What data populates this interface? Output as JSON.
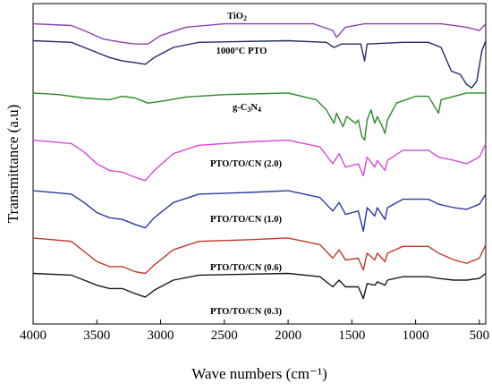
{
  "chart_data": {
    "type": "line",
    "xlabel": "Wave numbers (cm⁻¹)",
    "ylabel": "Transmittance (a.u)",
    "xlim": [
      4000,
      450
    ],
    "x_reversed": true,
    "xticks": [
      4000,
      3500,
      3000,
      2500,
      2000,
      1500,
      1000,
      500
    ],
    "yticks_shown": false,
    "grid": false,
    "legend": "none",
    "series": [
      {
        "name": "TiO₂",
        "label_html": "TiO<tspan font-size='8px' dy='2'>2</tspan>",
        "color": "#8e3fb0",
        "offset": 7.4,
        "points": [
          [
            4000,
            0
          ],
          [
            3700,
            -0.05
          ],
          [
            3600,
            -0.2
          ],
          [
            3450,
            -0.45
          ],
          [
            3300,
            -0.55
          ],
          [
            3200,
            -0.6
          ],
          [
            3100,
            -0.6
          ],
          [
            3000,
            -0.35
          ],
          [
            2800,
            -0.1
          ],
          [
            2500,
            0
          ],
          [
            1800,
            0
          ],
          [
            1650,
            -0.2
          ],
          [
            1620,
            -0.4
          ],
          [
            1550,
            -0.1
          ],
          [
            1400,
            0
          ],
          [
            800,
            0
          ],
          [
            600,
            -0.1
          ],
          [
            500,
            -0.2
          ],
          [
            450,
            0
          ]
        ]
      },
      {
        "name": "1000°C PTO",
        "label_html": "1000°C PTO",
        "color": "#252a6b",
        "offset": 6.9,
        "points": [
          [
            4000,
            0
          ],
          [
            3700,
            -0.05
          ],
          [
            3600,
            -0.2
          ],
          [
            3500,
            -0.35
          ],
          [
            3400,
            -0.5
          ],
          [
            3300,
            -0.6
          ],
          [
            3200,
            -0.65
          ],
          [
            3120,
            -0.7
          ],
          [
            3050,
            -0.5
          ],
          [
            2900,
            -0.2
          ],
          [
            2700,
            -0.05
          ],
          [
            2000,
            0
          ],
          [
            1700,
            -0.05
          ],
          [
            1640,
            -0.2
          ],
          [
            1580,
            -0.1
          ],
          [
            1430,
            -0.1
          ],
          [
            1400,
            -0.6
          ],
          [
            1380,
            -0.1
          ],
          [
            1100,
            -0.05
          ],
          [
            900,
            -0.05
          ],
          [
            800,
            -0.2
          ],
          [
            720,
            -0.9
          ],
          [
            650,
            -1.0
          ],
          [
            600,
            -1.3
          ],
          [
            560,
            -1.4
          ],
          [
            520,
            -1.2
          ],
          [
            480,
            -0.3
          ],
          [
            450,
            0
          ]
        ]
      },
      {
        "name": "g-C₃N₄",
        "label_html": "g-C<tspan font-size='8px' dy='2'>3</tspan><tspan dy='-2'>N</tspan><tspan font-size='8px' dy='2'>4</tspan>",
        "color": "#2b8a2b",
        "offset": 5.35,
        "points": [
          [
            4000,
            0
          ],
          [
            3800,
            -0.05
          ],
          [
            3600,
            -0.15
          ],
          [
            3400,
            -0.2
          ],
          [
            3300,
            -0.1
          ],
          [
            3200,
            -0.15
          ],
          [
            3100,
            -0.3
          ],
          [
            3000,
            -0.25
          ],
          [
            2800,
            -0.12
          ],
          [
            2500,
            -0.05
          ],
          [
            2000,
            0
          ],
          [
            1780,
            -0.2
          ],
          [
            1700,
            -0.5
          ],
          [
            1640,
            -0.9
          ],
          [
            1620,
            -0.6
          ],
          [
            1570,
            -1.0
          ],
          [
            1540,
            -0.7
          ],
          [
            1470,
            -0.9
          ],
          [
            1450,
            -0.8
          ],
          [
            1420,
            -1.3
          ],
          [
            1400,
            -1.4
          ],
          [
            1380,
            -0.8
          ],
          [
            1350,
            -0.5
          ],
          [
            1320,
            -0.9
          ],
          [
            1300,
            -0.7
          ],
          [
            1260,
            -1.0
          ],
          [
            1240,
            -1.2
          ],
          [
            1220,
            -0.8
          ],
          [
            1150,
            -0.3
          ],
          [
            1000,
            -0.1
          ],
          [
            900,
            -0.1
          ],
          [
            820,
            -0.6
          ],
          [
            800,
            -0.2
          ],
          [
            600,
            0
          ],
          [
            450,
            0
          ]
        ]
      },
      {
        "name": "PTO/TO/CN (2.0)",
        "label_html": "PTO/TO/CN (2.0)",
        "color": "#d64ad8",
        "offset": 3.95,
        "points": [
          [
            4000,
            0
          ],
          [
            3700,
            -0.1
          ],
          [
            3600,
            -0.35
          ],
          [
            3500,
            -0.7
          ],
          [
            3400,
            -0.9
          ],
          [
            3300,
            -0.95
          ],
          [
            3200,
            -1.1
          ],
          [
            3120,
            -1.2
          ],
          [
            3050,
            -0.9
          ],
          [
            2900,
            -0.4
          ],
          [
            2700,
            -0.15
          ],
          [
            2300,
            -0.05
          ],
          [
            2000,
            0
          ],
          [
            1750,
            -0.2
          ],
          [
            1650,
            -0.7
          ],
          [
            1600,
            -0.4
          ],
          [
            1550,
            -0.8
          ],
          [
            1450,
            -0.7
          ],
          [
            1410,
            -1.05
          ],
          [
            1380,
            -0.5
          ],
          [
            1320,
            -0.8
          ],
          [
            1300,
            -0.6
          ],
          [
            1240,
            -0.9
          ],
          [
            1220,
            -0.6
          ],
          [
            1100,
            -0.3
          ],
          [
            900,
            -0.3
          ],
          [
            820,
            -0.5
          ],
          [
            700,
            -0.6
          ],
          [
            600,
            -0.7
          ],
          [
            500,
            -0.5
          ],
          [
            450,
            -0.1
          ]
        ]
      },
      {
        "name": "PTO/TO/CN (1.0)",
        "label_html": "PTO/TO/CN (1.0)",
        "color": "#2c3aa0",
        "offset": 2.45,
        "points": [
          [
            4000,
            0
          ],
          [
            3700,
            -0.1
          ],
          [
            3600,
            -0.35
          ],
          [
            3500,
            -0.65
          ],
          [
            3400,
            -0.8
          ],
          [
            3300,
            -0.85
          ],
          [
            3200,
            -1.0
          ],
          [
            3120,
            -1.1
          ],
          [
            3050,
            -0.8
          ],
          [
            2900,
            -0.35
          ],
          [
            2700,
            -0.1
          ],
          [
            2300,
            -0.05
          ],
          [
            2000,
            0
          ],
          [
            1750,
            -0.2
          ],
          [
            1650,
            -0.6
          ],
          [
            1600,
            -0.35
          ],
          [
            1550,
            -0.7
          ],
          [
            1450,
            -0.6
          ],
          [
            1410,
            -1.2
          ],
          [
            1380,
            -0.5
          ],
          [
            1320,
            -0.75
          ],
          [
            1300,
            -0.5
          ],
          [
            1240,
            -0.85
          ],
          [
            1220,
            -0.5
          ],
          [
            1100,
            -0.25
          ],
          [
            900,
            -0.25
          ],
          [
            820,
            -0.4
          ],
          [
            700,
            -0.5
          ],
          [
            600,
            -0.55
          ],
          [
            500,
            -0.4
          ],
          [
            450,
            -0.1
          ]
        ]
      },
      {
        "name": "PTO/TO/CN (0.6)",
        "label_html": "PTO/TO/CN (0.6)",
        "color": "#c0392b",
        "offset": 1.05,
        "points": [
          [
            4000,
            0
          ],
          [
            3700,
            -0.1
          ],
          [
            3600,
            -0.4
          ],
          [
            3500,
            -0.7
          ],
          [
            3400,
            -0.85
          ],
          [
            3300,
            -0.85
          ],
          [
            3200,
            -1.0
          ],
          [
            3120,
            -1.05
          ],
          [
            3050,
            -0.8
          ],
          [
            2900,
            -0.35
          ],
          [
            2700,
            -0.1
          ],
          [
            2300,
            -0.05
          ],
          [
            2000,
            0
          ],
          [
            1750,
            -0.2
          ],
          [
            1650,
            -0.6
          ],
          [
            1600,
            -0.35
          ],
          [
            1550,
            -0.65
          ],
          [
            1450,
            -0.6
          ],
          [
            1410,
            -0.95
          ],
          [
            1380,
            -0.45
          ],
          [
            1320,
            -0.65
          ],
          [
            1300,
            -0.45
          ],
          [
            1240,
            -0.7
          ],
          [
            1220,
            -0.45
          ],
          [
            1100,
            -0.25
          ],
          [
            900,
            -0.25
          ],
          [
            820,
            -0.45
          ],
          [
            700,
            -0.65
          ],
          [
            600,
            -0.75
          ],
          [
            500,
            -0.6
          ],
          [
            450,
            -0.2
          ]
        ]
      },
      {
        "name": "PTO/TO/CN (0.3)",
        "label_html": "PTO/TO/CN (0.3)",
        "color": "#1a1a1a",
        "offset": 0,
        "points": [
          [
            4000,
            0
          ],
          [
            3700,
            -0.05
          ],
          [
            3600,
            -0.2
          ],
          [
            3500,
            -0.35
          ],
          [
            3400,
            -0.45
          ],
          [
            3300,
            -0.45
          ],
          [
            3200,
            -0.6
          ],
          [
            3120,
            -0.7
          ],
          [
            3050,
            -0.5
          ],
          [
            2900,
            -0.2
          ],
          [
            2700,
            -0.05
          ],
          [
            2000,
            0
          ],
          [
            1750,
            -0.1
          ],
          [
            1650,
            -0.4
          ],
          [
            1600,
            -0.2
          ],
          [
            1550,
            -0.4
          ],
          [
            1450,
            -0.4
          ],
          [
            1410,
            -0.75
          ],
          [
            1380,
            -0.3
          ],
          [
            1320,
            -0.35
          ],
          [
            1300,
            -0.25
          ],
          [
            1240,
            -0.35
          ],
          [
            1220,
            -0.2
          ],
          [
            1100,
            -0.1
          ],
          [
            900,
            -0.1
          ],
          [
            820,
            -0.15
          ],
          [
            700,
            -0.2
          ],
          [
            600,
            -0.2
          ],
          [
            500,
            -0.15
          ],
          [
            450,
            0
          ]
        ]
      }
    ]
  }
}
